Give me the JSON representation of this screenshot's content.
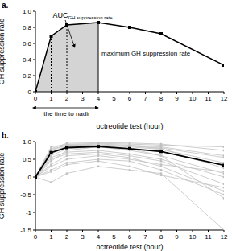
{
  "chart_data": [
    {
      "type": "line",
      "panel_label": "a.",
      "x_label": "octreotide test (hour)",
      "y_label": "GH suppression rate",
      "x": [
        0,
        1,
        2,
        4,
        6,
        8,
        12
      ],
      "series": [
        {
          "color": "#000000",
          "marker": "square",
          "values": [
            0,
            0.69,
            0.83,
            0.86,
            0.8,
            0.72,
            0.33
          ]
        }
      ],
      "xlim": [
        0,
        12
      ],
      "xticks": [
        0,
        1,
        2,
        3,
        4,
        5,
        6,
        7,
        8,
        9,
        10,
        11,
        12
      ],
      "ylim": [
        0,
        1
      ],
      "yticks": [
        0,
        0.2,
        0.4,
        0.6,
        0.8,
        {
          "value": 1,
          "label": "1.0"
        }
      ],
      "grid": false,
      "auc_range": [
        0,
        4
      ],
      "nadir": 4,
      "annotations": [
        {
          "text": "AUC",
          "subscript": "GH suppression rate"
        },
        {
          "text": "maximum GH suppression rate"
        },
        {
          "text": "the time to nadir"
        }
      ]
    },
    {
      "type": "line",
      "panel_label": "b.",
      "x_label": "octreotide test (hour)",
      "y_label": "GH suppression rate",
      "x": [
        0,
        1,
        2,
        4,
        6,
        8,
        12
      ],
      "series": [
        {
          "color": "#c0c0c0",
          "marker": "square",
          "values": [
            0,
            0.8,
            0.95,
            0.97,
            0.96,
            0.93,
            0.75
          ]
        },
        {
          "color": "#c0c0c0",
          "marker": "square",
          "values": [
            0,
            0.75,
            0.9,
            0.93,
            0.9,
            0.85,
            0.6
          ]
        },
        {
          "color": "#c0c0c0",
          "marker": "square",
          "values": [
            0,
            0.7,
            0.88,
            0.9,
            0.85,
            0.78,
            0.4
          ]
        },
        {
          "color": "#c0c0c0",
          "marker": "square",
          "values": [
            0,
            0.6,
            0.8,
            0.85,
            0.75,
            0.6,
            0.1
          ]
        },
        {
          "color": "#c0c0c0",
          "marker": "square",
          "values": [
            0,
            0.55,
            0.7,
            0.75,
            0.65,
            0.5,
            0.0
          ]
        },
        {
          "color": "#c0c0c0",
          "marker": "square",
          "values": [
            0,
            0.5,
            0.65,
            0.7,
            0.6,
            0.45,
            -0.2
          ]
        },
        {
          "color": "#c0c0c0",
          "marker": "square",
          "values": [
            0,
            0.35,
            0.6,
            0.65,
            0.55,
            0.3,
            -0.4
          ]
        },
        {
          "color": "#c0c0c0",
          "marker": "square",
          "values": [
            0,
            0.2,
            0.4,
            0.5,
            0.45,
            0.2,
            -0.5
          ]
        },
        {
          "color": "#c0c0c0",
          "marker": "square",
          "values": [
            0,
            0.65,
            0.85,
            0.9,
            0.8,
            0.6,
            -0.6
          ]
        },
        {
          "color": "#c0c0c0",
          "marker": "square",
          "values": [
            0,
            0.15,
            0.35,
            0.45,
            0.3,
            0.05,
            -0.3
          ]
        },
        {
          "color": "#c0c0c0",
          "marker": "square",
          "values": [
            0,
            -0.15,
            0.1,
            0.3,
            0.2,
            0.1,
            -1.5
          ]
        },
        {
          "color": "#c0c0c0",
          "marker": "square",
          "values": [
            0,
            0.45,
            0.75,
            0.85,
            0.88,
            0.82,
            0.55
          ]
        },
        {
          "color": "#c0c0c0",
          "marker": "square",
          "values": [
            0,
            0.85,
            0.92,
            0.95,
            0.93,
            0.9,
            0.85
          ]
        },
        {
          "color": "#c0c0c0",
          "marker": "square",
          "values": [
            0,
            0.3,
            0.5,
            0.6,
            0.5,
            0.35,
            0.15
          ]
        },
        {
          "color": "#c0c0c0",
          "marker": "square",
          "values": [
            0,
            0.78,
            0.9,
            0.9,
            0.88,
            0.8,
            0.25
          ]
        },
        {
          "color": "#000000",
          "marker": "square",
          "values": [
            0,
            0.69,
            0.83,
            0.86,
            0.8,
            0.72,
            0.33
          ]
        }
      ],
      "xlim": [
        0,
        12
      ],
      "xticks": [
        0,
        1,
        2,
        3,
        4,
        5,
        6,
        7,
        8,
        9,
        10,
        11,
        12
      ],
      "ylim": [
        -1.5,
        1
      ],
      "yticks": [
        -1.5,
        -1,
        -0.5,
        0,
        0.5,
        {
          "value": 1,
          "label": "1.0"
        }
      ],
      "grid": false
    }
  ]
}
